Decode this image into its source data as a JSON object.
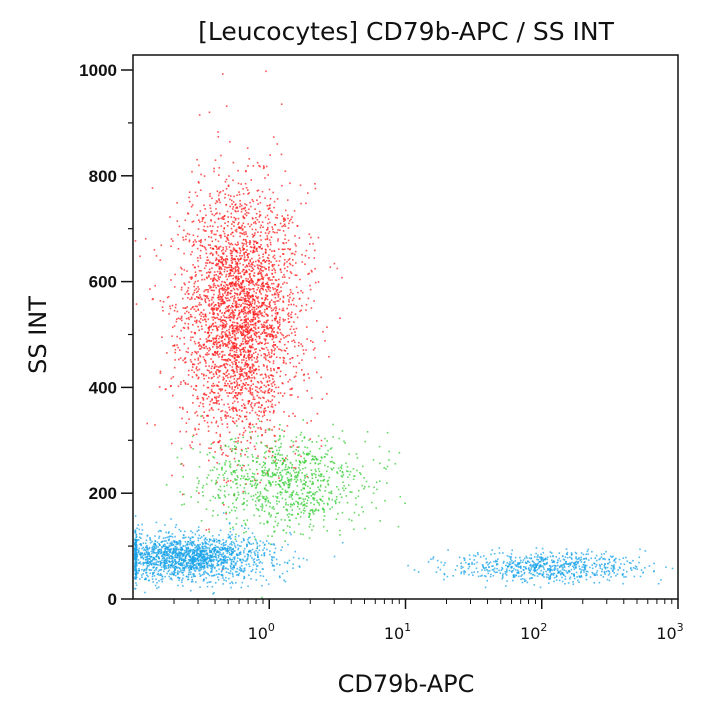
{
  "chart_data": {
    "type": "scatter",
    "title": "[Leucocytes] CD79b-APC / SS INT",
    "xlabel": "CD79b-APC",
    "ylabel": "SS INT",
    "xscale": "log",
    "xlim": [
      0.1,
      1000
    ],
    "ylim": [
      0,
      1000
    ],
    "yticks": [
      "0",
      "200",
      "400",
      "600",
      "800",
      "1000"
    ],
    "ytick_values": [
      0,
      200,
      400,
      600,
      800,
      1000
    ],
    "xticks": [
      {
        "base": "10",
        "exp": "0",
        "value": 1
      },
      {
        "base": "10",
        "exp": "1",
        "value": 10
      },
      {
        "base": "10",
        "exp": "2",
        "value": 100
      },
      {
        "base": "10",
        "exp": "3",
        "value": 1000
      }
    ],
    "grid": false,
    "legend": "none",
    "populations": [
      {
        "color": "#ff1a1a",
        "x_center": 0.6,
        "x_spread_decades": 0.22,
        "y_center": 540,
        "y_spread": 120,
        "count": 3200
      },
      {
        "color": "#33cc33",
        "x_center": 1.3,
        "x_spread_decades": 0.3,
        "y_center": 220,
        "y_spread": 45,
        "count": 900
      },
      {
        "color": "#1aa3e8",
        "x_center": 0.25,
        "x_spread_decades": 0.3,
        "y_center": 80,
        "y_spread": 22,
        "count": 1800
      },
      {
        "color": "#1aa3e8",
        "x_center": 110,
        "x_spread_decades": 0.35,
        "y_center": 62,
        "y_spread": 14,
        "count": 700
      }
    ]
  }
}
